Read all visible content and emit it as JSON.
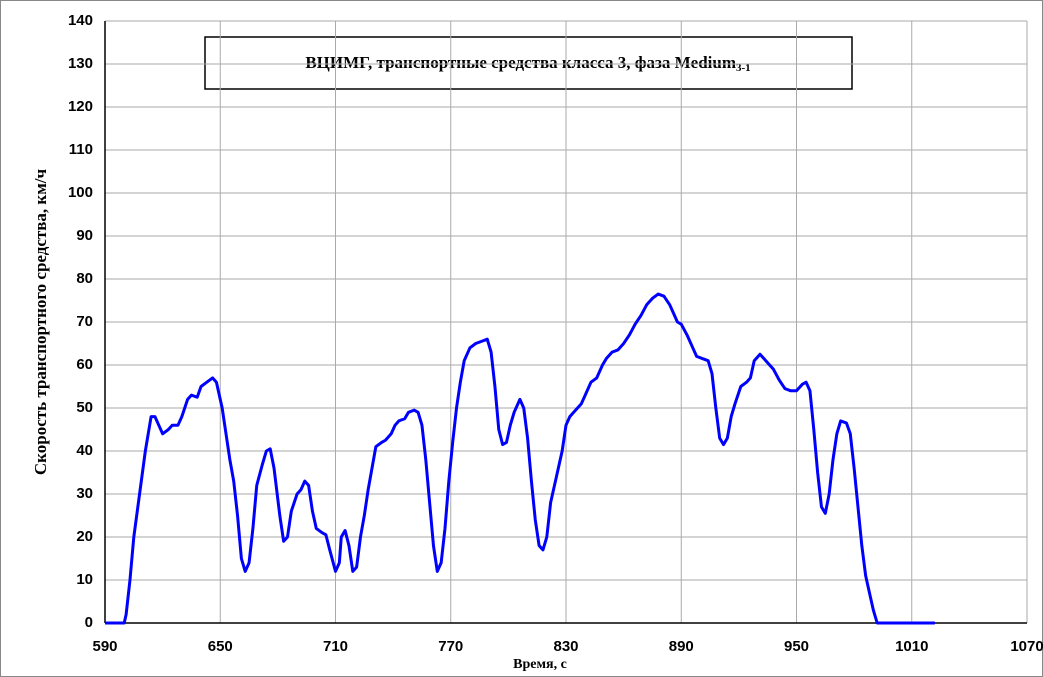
{
  "chart_data": {
    "type": "line",
    "title": "ВЦИМГ, транспортные средства класса 3, фаза Medium",
    "title_subscript": "3-1",
    "x_label": "Время, с",
    "y_label": "Скорость транспортного средства, км/ч",
    "xlim": [
      590,
      1070
    ],
    "ylim": [
      0,
      140
    ],
    "xticks": [
      590,
      650,
      710,
      770,
      830,
      890,
      950,
      1010,
      1070
    ],
    "yticks": [
      0,
      10,
      20,
      30,
      40,
      50,
      60,
      70,
      80,
      90,
      100,
      110,
      120,
      130,
      140
    ],
    "grid": true,
    "series": [
      {
        "name": "Medium",
        "color": "#0000ff",
        "x": [
          590,
          600,
          601,
          603,
          605,
          608,
          611,
          614,
          616,
          618,
          620,
          623,
          625,
          628,
          630,
          633,
          635,
          638,
          640,
          643,
          646,
          648,
          651,
          653,
          655,
          657,
          659,
          661,
          663,
          665,
          667,
          669,
          672,
          674,
          676,
          678,
          681,
          683,
          685,
          687,
          690,
          692,
          694,
          696,
          698,
          700,
          703,
          705,
          707,
          710,
          712,
          713,
          715,
          717,
          719,
          721,
          723,
          725,
          727,
          729,
          731,
          734,
          736,
          739,
          741,
          743,
          746,
          748,
          751,
          753,
          755,
          757,
          759,
          761,
          763,
          765,
          767,
          769,
          771,
          773,
          775,
          777,
          780,
          783,
          786,
          789,
          791,
          793,
          795,
          797,
          799,
          801,
          803,
          806,
          808,
          810,
          812,
          814,
          816,
          818,
          820,
          822,
          825,
          828,
          830,
          832,
          835,
          838,
          840,
          843,
          846,
          849,
          851,
          854,
          857,
          860,
          863,
          866,
          869,
          872,
          875,
          878,
          881,
          884,
          886,
          888,
          890,
          893,
          896,
          898,
          901,
          904,
          906,
          908,
          910,
          912,
          914,
          916,
          918,
          921,
          924,
          926,
          928,
          931,
          933,
          936,
          938,
          941,
          944,
          947,
          950,
          953,
          955,
          957,
          959,
          961,
          963,
          965,
          967,
          969,
          971,
          973,
          976,
          978,
          980,
          982,
          984,
          986,
          988,
          990,
          992,
          1022
        ],
        "values": [
          0,
          0,
          2,
          10,
          20,
          30,
          40,
          48,
          48,
          46,
          44,
          45,
          46,
          46,
          48,
          52,
          53,
          52.5,
          55,
          56,
          57,
          56,
          50,
          44,
          38,
          33,
          25,
          15,
          12,
          14,
          22,
          32,
          37,
          40,
          40.5,
          36,
          25,
          19,
          20,
          26,
          30,
          31,
          33,
          32,
          26,
          22,
          21,
          20.5,
          17,
          12,
          14,
          20,
          21.5,
          18,
          12,
          13,
          20,
          25,
          31,
          36,
          41,
          42,
          42.5,
          44,
          46,
          47,
          47.5,
          49,
          49.5,
          49,
          46,
          38,
          28,
          18,
          12,
          14,
          22,
          33,
          42,
          50,
          56,
          61,
          64,
          65,
          65.5,
          66,
          63,
          55,
          45,
          41.5,
          42,
          46,
          49,
          52,
          50,
          43,
          33,
          24,
          18,
          17,
          20,
          28,
          34,
          40,
          46,
          48,
          49.5,
          51,
          53,
          56,
          57,
          60,
          61.5,
          63,
          63.5,
          65,
          67,
          69.5,
          71.5,
          74,
          75.5,
          76.5,
          76,
          74,
          72,
          70,
          69.5,
          67,
          64,
          62,
          61.5,
          61,
          58,
          50,
          43,
          41.5,
          43,
          48,
          51,
          55,
          56,
          57,
          61,
          62.5,
          61.5,
          60,
          59,
          56.5,
          54.5,
          54,
          54,
          55.5,
          56,
          54,
          45,
          35,
          27,
          25.5,
          30,
          38,
          44,
          47,
          46.5,
          44,
          36,
          27,
          18,
          11,
          7,
          3,
          0,
          0
        ]
      }
    ]
  }
}
